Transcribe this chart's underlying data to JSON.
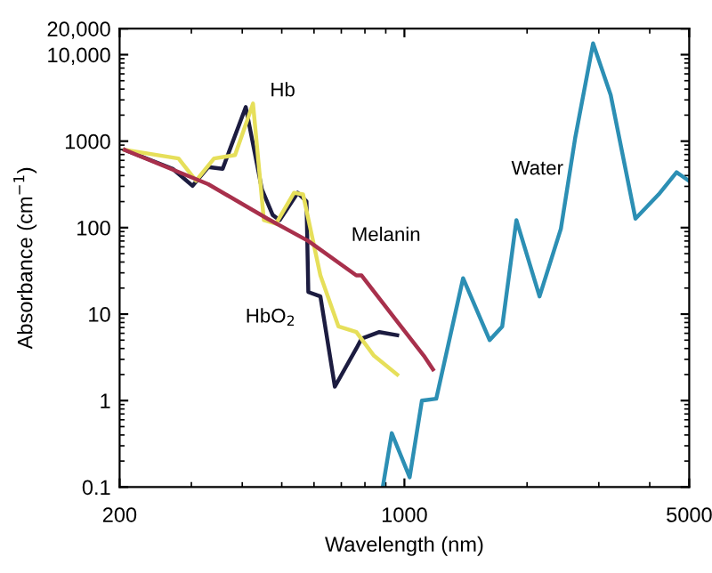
{
  "chart_data": {
    "type": "line",
    "xlabel": "Wavelength (nm)",
    "ylabel": "Absorbance (cm$^{−1}$)",
    "log": "xy",
    "xlim": [
      200,
      5000
    ],
    "ylim": [
      0.1,
      20000
    ],
    "xticks": [
      200,
      1000,
      5000
    ],
    "yticks": [
      0.1,
      1,
      10,
      100,
      1000,
      {
        "value": 10000,
        "label": "10,000"
      },
      {
        "value": 20000,
        "label": "20,000"
      }
    ],
    "grid": false,
    "legend": false,
    "series": [
      {
        "name": "HbO$_{2}$",
        "color": "#1c1c40",
        "x": [
          206,
          270,
          302,
          330,
          358,
          408,
          447,
          475,
          494,
          547,
          575,
          581,
          622,
          675,
          762,
          785,
          868,
          960
        ],
        "values": [
          792,
          479,
          304,
          501,
          479,
          2480,
          277,
          140,
          122,
          253,
          201,
          18,
          16,
          1.45,
          4.0,
          5.2,
          6.2,
          5.7
        ]
      },
      {
        "name": "Hb",
        "color": "#e6df5a",
        "x": [
          206,
          279,
          308,
          341,
          384,
          425,
          452,
          484,
          536,
          564,
          622,
          689,
          762,
          842,
          960
        ],
        "values": [
          792,
          630,
          348,
          630,
          690,
          2720,
          122,
          111,
          253,
          242,
          28,
          7.2,
          6.2,
          3.3,
          2.0
        ]
      },
      {
        "name": "Melanin",
        "color": "#a8304c",
        "x": [
          206,
          330,
          461,
          581,
          762,
          785,
          960,
          1116,
          1175
        ],
        "values": [
          792,
          318,
          127,
          70,
          28,
          28,
          8.2,
          3.3,
          2.3
        ]
      },
      {
        "name": "Water",
        "color": "#2c8fb4",
        "x": [
          885,
          931,
          1030,
          1104,
          1197,
          1393,
          1619,
          1738,
          1883,
          2146,
          2421,
          2625,
          2904,
          3208,
          3690,
          4206,
          4655,
          4990
        ],
        "values": [
          0.1,
          0.42,
          0.13,
          1.0,
          1.05,
          26,
          5.0,
          7.2,
          122,
          16,
          97,
          1090,
          13500,
          3420,
          127,
          242,
          437,
          348
        ]
      }
    ]
  }
}
